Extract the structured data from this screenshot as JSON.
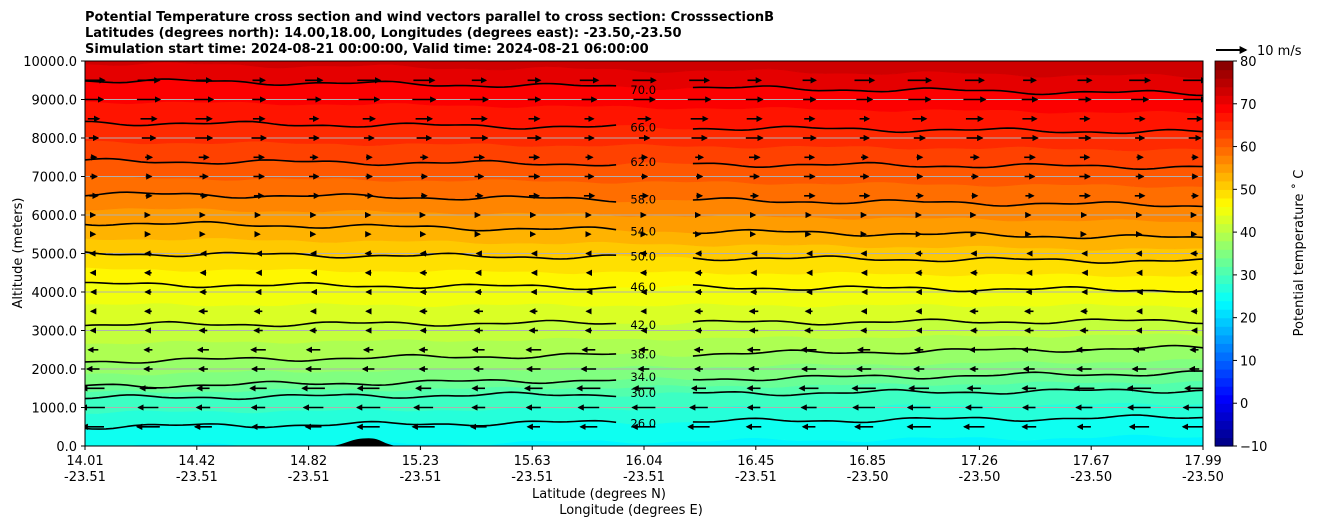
{
  "chart_data": {
    "type": "heatmap",
    "title_lines": [
      "Potential Temperature cross section and wind vectors parallel to cross section: CrosssectionB",
      "Latitudes (degrees north): 14.00,18.00, Longitudes (degrees east): -23.50,-23.50",
      "Simulation start time: 2024-08-21 00:00:00, Valid time: 2024-08-21 06:00:00"
    ],
    "xlabel": "Latitude (degrees N)",
    "xlabel2": "Longitude (degrees E)",
    "ylabel": "Altitude (meters)",
    "x_ticks": [
      {
        "lat": "14.01",
        "lon": "-23.51"
      },
      {
        "lat": "14.42",
        "lon": "-23.51"
      },
      {
        "lat": "14.82",
        "lon": "-23.51"
      },
      {
        "lat": "15.23",
        "lon": "-23.51"
      },
      {
        "lat": "15.63",
        "lon": "-23.51"
      },
      {
        "lat": "16.04",
        "lon": "-23.51"
      },
      {
        "lat": "16.45",
        "lon": "-23.51"
      },
      {
        "lat": "16.85",
        "lon": "-23.50"
      },
      {
        "lat": "17.26",
        "lon": "-23.50"
      },
      {
        "lat": "17.67",
        "lon": "-23.50"
      },
      {
        "lat": "17.99",
        "lon": "-23.50"
      }
    ],
    "y_ticks": [
      "0.0",
      "1000.0",
      "2000.0",
      "3000.0",
      "4000.0",
      "5000.0",
      "6000.0",
      "7000.0",
      "8000.0",
      "9000.0",
      "10000.0"
    ],
    "ylim": [
      0,
      10000
    ],
    "grid": "horizontal",
    "colorbar": {
      "label": "Potential temperature ˚ C",
      "ticks": [
        "−10",
        "0",
        "10",
        "20",
        "30",
        "40",
        "50",
        "60",
        "70",
        "80"
      ],
      "range": [
        -10,
        80
      ],
      "colormap": "jet"
    },
    "wind_key_label": "10 m/s",
    "contours": [
      {
        "level": 26.0,
        "label": "26.0",
        "altitude_left": 500,
        "altitude_right": 750
      },
      {
        "level": 30.0,
        "label": "30.0",
        "altitude_left": 1250,
        "altitude_right": 1450
      },
      {
        "level": 34.0,
        "label": "34.0",
        "altitude_left": 1550,
        "altitude_right": 1900
      },
      {
        "level": 38.0,
        "label": "38.0",
        "altitude_left": 2200,
        "altitude_right": 2550
      },
      {
        "level": 42.0,
        "label": "42.0",
        "altitude_left": 3150,
        "altitude_right": 3250
      },
      {
        "level": 46.0,
        "label": "46.0",
        "altitude_left": 4200,
        "altitude_right": 4050
      },
      {
        "level": 50.0,
        "label": "50.0",
        "altitude_left": 5000,
        "altitude_right": 4800
      },
      {
        "level": 54.0,
        "label": "54.0",
        "altitude_left": 5800,
        "altitude_right": 5400
      },
      {
        "level": 58.0,
        "label": "58.0",
        "altitude_left": 6550,
        "altitude_right": 6250
      },
      {
        "level": 62.0,
        "label": "62.0",
        "altitude_left": 7400,
        "altitude_right": 7250
      },
      {
        "level": 66.0,
        "label": "66.0",
        "altitude_left": 8400,
        "altitude_right": 8150
      },
      {
        "level": 70.0,
        "label": "70.0",
        "altitude_left": 9500,
        "altitude_right": 9150
      }
    ],
    "terrain": {
      "lat_start": 14.89,
      "lat_peak": 15.02,
      "lat_end": 15.12,
      "max_altitude": 200
    }
  }
}
